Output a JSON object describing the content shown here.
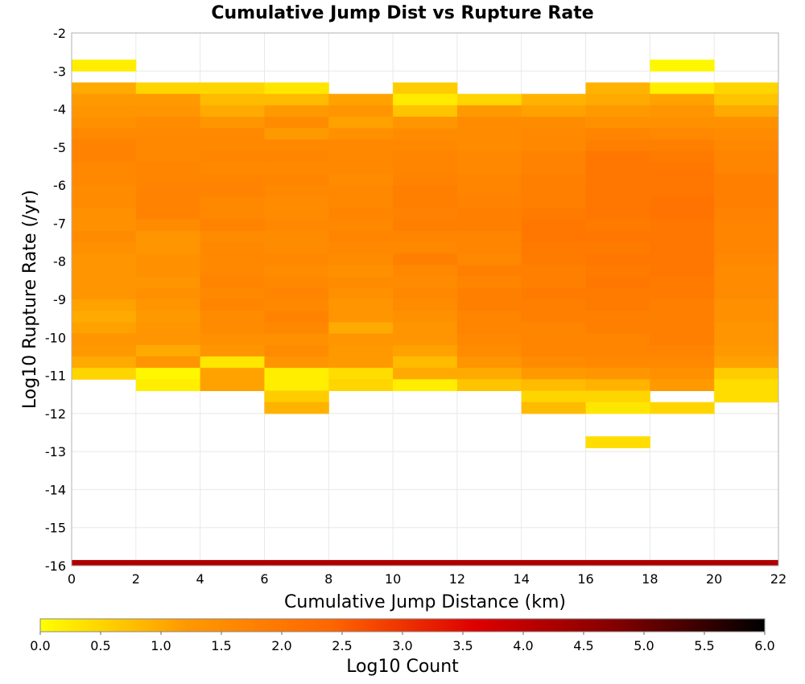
{
  "chart_data": {
    "type": "heatmap",
    "title": "Cumulative Jump Dist vs Rupture Rate",
    "xlabel": "Cumulative Jump Distance (km)",
    "ylabel": "Log10 Rupture Rate (/yr)",
    "xlim": [
      0,
      22
    ],
    "ylim": [
      -16,
      -2
    ],
    "xticks": [
      "0",
      "2",
      "4",
      "6",
      "8",
      "10",
      "12",
      "14",
      "16",
      "18",
      "20",
      "22"
    ],
    "yticks": [
      "-2",
      "-3",
      "-4",
      "-5",
      "-6",
      "-7",
      "-8",
      "-9",
      "-10",
      "-11",
      "-12",
      "-13",
      "-14",
      "-15",
      "-16"
    ],
    "grid": true,
    "x_bin_width": 2,
    "y_bin_height": 0.3,
    "x_bin_starts": [
      0,
      2,
      4,
      6,
      8,
      10,
      12,
      14,
      16,
      18,
      20
    ],
    "y_bin_tops": [
      -2.7,
      -3.3,
      -3.6,
      -3.9,
      -4.2,
      -4.5,
      -4.8,
      -5.1,
      -5.4,
      -5.7,
      -6.0,
      -6.3,
      -6.6,
      -6.9,
      -7.2,
      -7.5,
      -7.8,
      -8.1,
      -8.4,
      -8.7,
      -9.0,
      -9.3,
      -9.6,
      -9.9,
      -10.2,
      -10.5,
      -10.8,
      -11.1,
      -11.4,
      -11.7,
      -12.0,
      -12.6
    ],
    "log10_count_columns": [
      [
        0.2,
        1.0,
        1.2,
        1.3,
        1.4,
        1.6,
        1.75,
        1.75,
        1.6,
        1.6,
        1.5,
        1.5,
        1.4,
        1.4,
        1.5,
        1.4,
        1.3,
        1.3,
        1.3,
        1.3,
        1.1,
        1.0,
        1.1,
        1.3,
        1.2,
        1.0,
        0.5,
        null,
        null,
        null,
        null,
        null
      ],
      [
        null,
        0.5,
        1.2,
        1.3,
        1.5,
        1.6,
        1.6,
        1.6,
        1.7,
        1.7,
        1.75,
        1.75,
        1.75,
        1.5,
        1.3,
        1.3,
        1.4,
        1.4,
        1.3,
        1.4,
        1.3,
        1.2,
        1.3,
        1.3,
        1.0,
        1.3,
        0.1,
        0.2,
        null,
        null,
        null,
        null
      ],
      [
        null,
        0.5,
        0.8,
        1.0,
        1.3,
        1.6,
        1.6,
        1.7,
        1.6,
        1.7,
        1.75,
        1.6,
        1.6,
        1.75,
        1.5,
        1.6,
        1.6,
        1.6,
        1.7,
        1.6,
        1.7,
        1.5,
        1.5,
        1.4,
        1.3,
        0.3,
        1.1,
        1.1,
        null,
        null,
        null,
        null
      ],
      [
        null,
        0.3,
        0.8,
        1.2,
        1.5,
        1.2,
        1.6,
        1.7,
        1.6,
        1.7,
        1.6,
        1.5,
        1.5,
        1.6,
        1.5,
        1.5,
        1.6,
        1.5,
        1.6,
        1.7,
        1.6,
        1.75,
        1.6,
        1.4,
        1.5,
        1.3,
        0.2,
        0.2,
        0.6,
        0.9,
        null,
        null
      ],
      [
        null,
        null,
        1.1,
        1.3,
        1.1,
        1.4,
        1.6,
        1.6,
        1.6,
        1.5,
        1.6,
        1.6,
        1.7,
        1.6,
        1.7,
        1.6,
        1.5,
        1.4,
        1.5,
        1.4,
        1.3,
        1.3,
        1.0,
        1.3,
        1.2,
        1.2,
        0.4,
        0.5,
        null,
        null,
        null,
        null
      ],
      [
        null,
        0.6,
        0.25,
        0.7,
        1.3,
        1.5,
        1.6,
        1.7,
        1.7,
        1.75,
        1.8,
        1.8,
        1.75,
        1.8,
        1.7,
        1.6,
        1.8,
        1.6,
        1.5,
        1.6,
        1.5,
        1.4,
        1.3,
        1.3,
        1.1,
        0.8,
        1.0,
        0.2,
        null,
        null,
        null,
        null
      ],
      [
        null,
        null,
        0.5,
        1.2,
        1.5,
        1.5,
        1.5,
        1.6,
        1.6,
        1.7,
        1.7,
        1.75,
        1.8,
        1.8,
        1.7,
        1.7,
        1.6,
        1.8,
        1.7,
        1.8,
        1.8,
        1.7,
        1.7,
        1.6,
        1.5,
        1.3,
        1.0,
        0.7,
        null,
        null,
        null,
        null
      ],
      [
        null,
        null,
        0.9,
        1.1,
        1.5,
        1.6,
        1.6,
        1.75,
        1.75,
        1.8,
        1.8,
        1.8,
        1.9,
        2.0,
        2.0,
        1.9,
        1.9,
        1.8,
        1.8,
        1.9,
        1.8,
        1.8,
        1.7,
        1.7,
        1.7,
        1.5,
        1.2,
        0.8,
        0.5,
        0.8,
        null,
        null
      ],
      [
        null,
        0.9,
        1.0,
        1.2,
        1.4,
        1.7,
        1.8,
        2.0,
        2.0,
        2.0,
        2.0,
        2.0,
        2.0,
        1.9,
        2.0,
        1.9,
        2.0,
        1.9,
        2.0,
        1.9,
        1.9,
        1.8,
        1.8,
        1.7,
        1.7,
        1.6,
        1.3,
        0.9,
        0.5,
        0.3,
        null,
        0.4
      ],
      [
        0.1,
        0.2,
        1.1,
        1.3,
        1.4,
        1.6,
        1.8,
        1.9,
        2.0,
        2.0,
        2.0,
        2.1,
        2.1,
        2.0,
        2.0,
        2.0,
        2.0,
        2.0,
        1.9,
        1.9,
        1.8,
        1.8,
        1.8,
        1.8,
        1.7,
        1.6,
        1.4,
        1.2,
        null,
        0.5,
        null,
        null
      ],
      [
        null,
        0.5,
        0.7,
        1.0,
        1.4,
        1.5,
        1.6,
        1.7,
        1.7,
        1.8,
        1.8,
        1.8,
        1.75,
        1.7,
        1.7,
        1.7,
        1.6,
        1.5,
        1.5,
        1.5,
        1.4,
        1.4,
        1.3,
        1.3,
        1.2,
        1.1,
        0.6,
        0.4,
        0.4,
        null,
        null,
        null
      ]
    ],
    "bottom_band": {
      "y_range": [
        -16,
        -15.85
      ],
      "log10_count": 4.2
    },
    "colorbar": {
      "label": "Log10 Count",
      "range": [
        0,
        6
      ],
      "ticks": [
        "0.0",
        "0.5",
        "1.0",
        "1.5",
        "2.0",
        "2.5",
        "3.0",
        "3.5",
        "4.0",
        "4.5",
        "5.0",
        "5.5",
        "6.0"
      ],
      "colors": [
        "#ffff00",
        "#ff9900",
        "#ff6600",
        "#dd0000",
        "#800000",
        "#000000"
      ]
    }
  }
}
